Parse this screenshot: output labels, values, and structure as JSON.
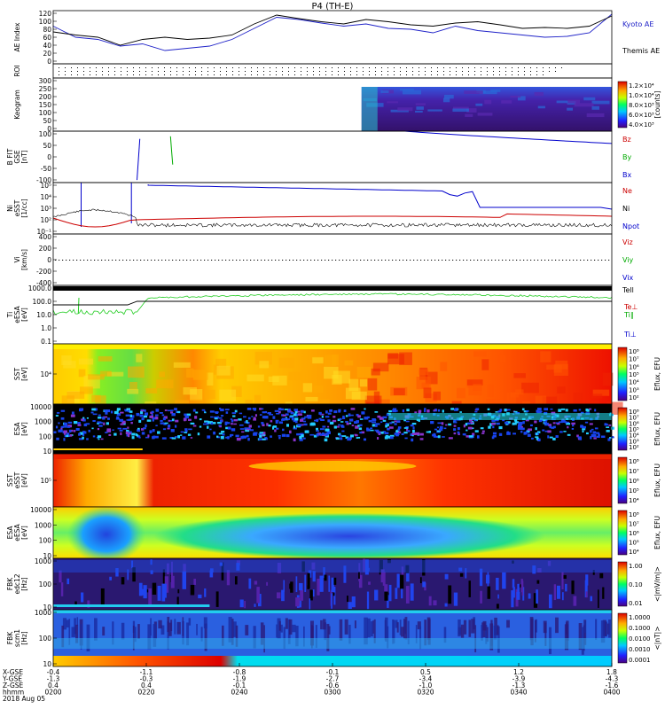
{
  "title": "P4 (TH-E)",
  "colors": {
    "kyoto": "#1f22c8",
    "themis": "#000000",
    "bz": "#cc0000",
    "by": "#00aa00",
    "bx": "#0000cc",
    "ne": "#cc0000",
    "ni": "#000000",
    "npot": "#0000cc",
    "green": "#22cc22"
  },
  "chart_data": [
    {
      "type": "line",
      "panel": "ae",
      "ylabel": "AE Index",
      "yticks": [
        "120",
        "100",
        "80",
        "60",
        "40",
        "20",
        "0"
      ],
      "ylim": [
        0,
        120
      ],
      "series": [
        {
          "name": "Kyoto AE",
          "x": [
            0,
            0.04,
            0.08,
            0.12,
            0.16,
            0.2,
            0.24,
            0.28,
            0.32,
            0.36,
            0.4,
            0.44,
            0.48,
            0.52,
            0.56,
            0.6,
            0.64,
            0.68,
            0.72,
            0.76,
            0.8,
            0.84,
            0.88,
            0.92,
            0.96,
            1.0
          ],
          "values": [
            85,
            60,
            55,
            40,
            45,
            30,
            35,
            40,
            55,
            80,
            105,
            100,
            92,
            85,
            90,
            80,
            78,
            70,
            85,
            75,
            70,
            65,
            60,
            62,
            70,
            112
          ]
        },
        {
          "name": "Themis AE",
          "x": [
            0,
            0.04,
            0.08,
            0.12,
            0.16,
            0.2,
            0.24,
            0.28,
            0.32,
            0.36,
            0.4,
            0.44,
            0.48,
            0.52,
            0.56,
            0.6,
            0.64,
            0.68,
            0.72,
            0.76,
            0.8,
            0.84,
            0.88,
            0.92,
            0.96,
            1.0
          ],
          "values": [
            72,
            65,
            60,
            42,
            55,
            60,
            55,
            58,
            65,
            90,
            110,
            102,
            95,
            90,
            100,
            95,
            88,
            85,
            92,
            95,
            88,
            80,
            82,
            80,
            85,
            108
          ]
        }
      ]
    },
    {
      "type": "table",
      "panel": "roi",
      "ylabel": "ROI"
    },
    {
      "type": "heatmap",
      "panel": "keogram",
      "ylabel": "Keogram",
      "yticks": [
        "300",
        "250",
        "200",
        "150",
        "100",
        "50",
        "0"
      ],
      "colorbar": {
        "ticks": [
          "1.2×10⁴",
          "1.0×10⁴",
          "8.0×10³",
          "6.0×10³",
          "4.0×10³"
        ],
        "label": "[counts]"
      }
    },
    {
      "type": "line",
      "panel": "bfit",
      "ylabel": "B FIT GSE [nT]",
      "yticks": [
        "100",
        "50",
        "0",
        "-50",
        "-100"
      ],
      "ylim": [
        -100,
        100
      ],
      "series": [
        {
          "name": "Bz"
        },
        {
          "name": "By"
        },
        {
          "name": "Bx"
        }
      ]
    },
    {
      "type": "line",
      "panel": "ni",
      "ylabel": "Ni eSST [1/cc]",
      "yticks": [
        "10⁵",
        "10⁴",
        "10³",
        "10²",
        "10⁻¹"
      ],
      "series": [
        {
          "name": "Ne"
        },
        {
          "name": "Ni"
        },
        {
          "name": "Npot"
        }
      ]
    },
    {
      "type": "line",
      "panel": "vi",
      "ylabel": "Vi [km/s]",
      "yticks": [
        "400",
        "200",
        "0",
        "-200",
        "-400"
      ],
      "ylim": [
        -400,
        400
      ],
      "series": [
        {
          "name": "Viz"
        },
        {
          "name": "Viy"
        },
        {
          "name": "Vix"
        }
      ]
    },
    {
      "type": "line",
      "panel": "ti",
      "ylabel": "Ti eESA [eV]",
      "yticks": [
        "1000.0",
        "100.0",
        "10.0",
        "1.0",
        "0.1"
      ],
      "series": [
        {
          "name": "Tell"
        },
        {
          "name": "Te⊥"
        },
        {
          "name": "Ti∥"
        },
        {
          "name": "Ti⊥"
        }
      ]
    },
    {
      "type": "heatmap",
      "panel": "sst_i",
      "ylabel": "SST [eV]",
      "yticks": [
        "10⁴"
      ],
      "colorbar": {
        "ticks": [
          "10⁸",
          "10⁷",
          "10⁶",
          "10⁵",
          "10⁴",
          "10³",
          "10²"
        ],
        "label": "Eflux, EFU"
      }
    },
    {
      "type": "heatmap",
      "panel": "esa_i",
      "ylabel": "ESA [eV]",
      "yticks": [
        "10000",
        "1000",
        "100",
        "10"
      ],
      "colorbar": {
        "ticks": [
          "10⁸",
          "10⁷",
          "10⁶",
          "10⁵",
          "10⁴",
          "10³",
          "10²"
        ],
        "label": "Eflux, EFU"
      }
    },
    {
      "type": "heatmap",
      "panel": "sst_e",
      "ylabel": "SST eSST [eV]",
      "yticks": [
        "10⁵"
      ],
      "colorbar": {
        "ticks": [
          "10⁸",
          "10⁷",
          "10⁶",
          "10⁵",
          "10⁴"
        ],
        "label": "Eflux, EFU"
      }
    },
    {
      "type": "heatmap",
      "panel": "esa_e",
      "ylabel": "ESA eESA [eV]",
      "yticks": [
        "10000",
        "1000",
        "100",
        "10"
      ],
      "colorbar": {
        "ticks": [
          "10⁸",
          "10⁷",
          "10⁶",
          "10⁵",
          "10⁴"
        ],
        "label": "Eflux, EFU"
      }
    },
    {
      "type": "heatmap",
      "panel": "fbk1",
      "ylabel": "FBK edc12 [Hz]",
      "yticks": [
        "1000",
        "100",
        "10"
      ],
      "colorbar": {
        "ticks": [
          "1.00",
          "0.10",
          "0.01"
        ],
        "label": "<|mV/m|>"
      }
    },
    {
      "type": "heatmap",
      "panel": "fbk2",
      "ylabel": "FBK scm1 [Hz]",
      "yticks": [
        "1000",
        "100",
        "10"
      ],
      "colorbar": {
        "ticks": [
          "1.0000",
          "0.1000",
          "0.0100",
          "0.0010",
          "0.0001"
        ],
        "label": "<|nT|>"
      }
    }
  ],
  "xaxis": {
    "rowlabels": [
      "X-GSE",
      "Y-GSE",
      "Z-GSE",
      "hhmm",
      "2018 Aug 05"
    ],
    "ticks": [
      {
        "vals": [
          "-0.4",
          "-1.3",
          "0.4",
          "0200"
        ]
      },
      {
        "vals": [
          "-1.1",
          "-0.3",
          "0.4",
          "0220"
        ]
      },
      {
        "vals": [
          "-0.8",
          "-1.9",
          "-0.1",
          "0240"
        ]
      },
      {
        "vals": [
          "-0.1",
          "-2.7",
          "-0.6",
          "0300"
        ]
      },
      {
        "vals": [
          "0.5",
          "-3.4",
          "-1.0",
          "0320"
        ]
      },
      {
        "vals": [
          "1.2",
          "-3.9",
          "-1.3",
          "0340"
        ]
      },
      {
        "vals": [
          "1.8",
          "-4.3",
          "-1.6",
          "0400"
        ]
      }
    ]
  }
}
